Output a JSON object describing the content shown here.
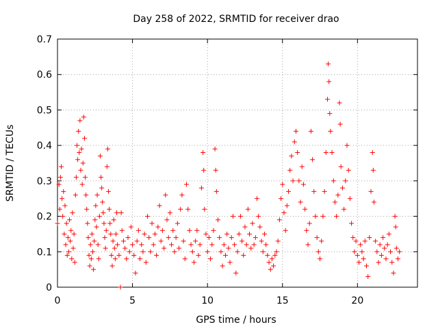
{
  "chart_data": {
    "type": "scatter",
    "title": "Day 258 of 2022, SRMTID for receiver drao",
    "xlabel": "GPS time / hours",
    "ylabel": "SRMTID / TECUs",
    "xlim": [
      0,
      24
    ],
    "ylim": [
      0,
      0.7
    ],
    "x_ticks": [
      "0",
      "5",
      "10",
      "15",
      "20"
    ],
    "y_ticks": [
      "0",
      "0.1",
      "0.2",
      "0.3",
      "0.4",
      "0.5",
      "0.6",
      "0.7"
    ],
    "grid": true,
    "marker": "+",
    "color": "#ff0000",
    "series": [
      {
        "name": "drao",
        "points": [
          [
            0.0,
            0.18
          ],
          [
            0.1,
            0.29
          ],
          [
            0.15,
            0.22
          ],
          [
            0.2,
            0.31
          ],
          [
            0.25,
            0.34
          ],
          [
            0.3,
            0.25
          ],
          [
            0.35,
            0.2
          ],
          [
            0.4,
            0.27
          ],
          [
            0.45,
            0.15
          ],
          [
            0.5,
            0.23
          ],
          [
            0.55,
            0.12
          ],
          [
            0.6,
            0.18
          ],
          [
            0.65,
            0.09
          ],
          [
            0.7,
            0.14
          ],
          [
            0.75,
            0.1
          ],
          [
            0.8,
            0.19
          ],
          [
            0.85,
            0.13
          ],
          [
            0.9,
            0.16
          ],
          [
            0.95,
            0.08
          ],
          [
            1.0,
            0.21
          ],
          [
            1.05,
            0.11
          ],
          [
            1.1,
            0.15
          ],
          [
            1.15,
            0.07
          ],
          [
            1.2,
            0.26
          ],
          [
            1.25,
            0.31
          ],
          [
            1.3,
            0.4
          ],
          [
            1.35,
            0.36
          ],
          [
            1.4,
            0.44
          ],
          [
            1.45,
            0.38
          ],
          [
            1.5,
            0.47
          ],
          [
            1.55,
            0.33
          ],
          [
            1.6,
            0.39
          ],
          [
            1.65,
            0.29
          ],
          [
            1.7,
            0.35
          ],
          [
            1.75,
            0.48
          ],
          [
            1.8,
            0.42
          ],
          [
            1.85,
            0.31
          ],
          [
            1.9,
            0.26
          ],
          [
            1.95,
            0.22
          ],
          [
            2.0,
            0.18
          ],
          [
            2.05,
            0.14
          ],
          [
            2.1,
            0.09
          ],
          [
            2.15,
            0.06
          ],
          [
            2.2,
            0.12
          ],
          [
            2.25,
            0.08
          ],
          [
            2.3,
            0.15
          ],
          [
            2.35,
            0.1
          ],
          [
            2.4,
            0.05
          ],
          [
            2.45,
            0.13
          ],
          [
            2.5,
            0.19
          ],
          [
            2.55,
            0.23
          ],
          [
            2.6,
            0.17
          ],
          [
            2.65,
            0.26
          ],
          [
            2.7,
            0.12
          ],
          [
            2.75,
            0.08
          ],
          [
            2.8,
            0.2
          ],
          [
            2.85,
            0.37
          ],
          [
            2.9,
            0.31
          ],
          [
            2.95,
            0.28
          ],
          [
            3.0,
            0.24
          ],
          [
            3.05,
            0.21
          ],
          [
            3.1,
            0.18
          ],
          [
            3.15,
            0.14
          ],
          [
            3.2,
            0.11
          ],
          [
            3.25,
            0.16
          ],
          [
            3.3,
            0.34
          ],
          [
            3.35,
            0.39
          ],
          [
            3.4,
            0.27
          ],
          [
            3.45,
            0.22
          ],
          [
            3.5,
            0.18
          ],
          [
            3.55,
            0.15
          ],
          [
            3.6,
            0.09
          ],
          [
            3.65,
            0.06
          ],
          [
            3.7,
            0.13
          ],
          [
            3.75,
            0.19
          ],
          [
            3.8,
            0.11
          ],
          [
            3.85,
            0.08
          ],
          [
            3.9,
            0.15
          ],
          [
            3.95,
            0.21
          ],
          [
            4.0,
            0.12
          ],
          [
            4.1,
            0.09
          ],
          [
            4.2,
            0.0
          ],
          [
            4.25,
            0.21
          ],
          [
            4.3,
            0.16
          ],
          [
            4.4,
            0.13
          ],
          [
            4.5,
            0.11
          ],
          [
            4.6,
            0.08
          ],
          [
            4.7,
            0.14
          ],
          [
            4.8,
            0.1
          ],
          [
            4.9,
            0.17
          ],
          [
            5.0,
            0.12
          ],
          [
            5.1,
            0.09
          ],
          [
            5.2,
            0.04
          ],
          [
            5.3,
            0.13
          ],
          [
            5.4,
            0.16
          ],
          [
            5.5,
            0.08
          ],
          [
            5.6,
            0.12
          ],
          [
            5.7,
            0.1
          ],
          [
            5.8,
            0.15
          ],
          [
            5.9,
            0.07
          ],
          [
            6.0,
            0.2
          ],
          [
            6.1,
            0.14
          ],
          [
            6.2,
            0.1
          ],
          [
            6.3,
            0.18
          ],
          [
            6.4,
            0.12
          ],
          [
            6.5,
            0.15
          ],
          [
            6.6,
            0.09
          ],
          [
            6.7,
            0.17
          ],
          [
            6.8,
            0.23
          ],
          [
            6.9,
            0.13
          ],
          [
            7.0,
            0.16
          ],
          [
            7.1,
            0.11
          ],
          [
            7.2,
            0.26
          ],
          [
            7.3,
            0.19
          ],
          [
            7.4,
            0.14
          ],
          [
            7.5,
            0.21
          ],
          [
            7.6,
            0.12
          ],
          [
            7.7,
            0.16
          ],
          [
            7.8,
            0.1
          ],
          [
            7.9,
            0.14
          ],
          [
            8.0,
            0.18
          ],
          [
            8.1,
            0.11
          ],
          [
            8.2,
            0.22
          ],
          [
            8.3,
            0.26
          ],
          [
            8.4,
            0.13
          ],
          [
            8.5,
            0.08
          ],
          [
            8.6,
            0.29
          ],
          [
            8.7,
            0.22
          ],
          [
            8.8,
            0.16
          ],
          [
            8.9,
            0.12
          ],
          [
            9.0,
            0.1
          ],
          [
            9.1,
            0.07
          ],
          [
            9.2,
            0.13
          ],
          [
            9.3,
            0.16
          ],
          [
            9.4,
            0.09
          ],
          [
            9.5,
            0.12
          ],
          [
            9.6,
            0.28
          ],
          [
            9.7,
            0.38
          ],
          [
            9.75,
            0.33
          ],
          [
            9.8,
            0.22
          ],
          [
            9.9,
            0.15
          ],
          [
            10.0,
            0.1
          ],
          [
            10.1,
            0.14
          ],
          [
            10.2,
            0.08
          ],
          [
            10.3,
            0.12
          ],
          [
            10.4,
            0.16
          ],
          [
            10.5,
            0.39
          ],
          [
            10.55,
            0.33
          ],
          [
            10.6,
            0.27
          ],
          [
            10.7,
            0.19
          ],
          [
            10.8,
            0.14
          ],
          [
            10.9,
            0.1
          ],
          [
            11.0,
            0.06
          ],
          [
            11.1,
            0.12
          ],
          [
            11.2,
            0.09
          ],
          [
            11.3,
            0.15
          ],
          [
            11.4,
            0.11
          ],
          [
            11.5,
            0.07
          ],
          [
            11.6,
            0.14
          ],
          [
            11.7,
            0.2
          ],
          [
            11.8,
            0.12
          ],
          [
            11.9,
            0.04
          ],
          [
            12.0,
            0.1
          ],
          [
            12.1,
            0.15
          ],
          [
            12.2,
            0.2
          ],
          [
            12.3,
            0.13
          ],
          [
            12.4,
            0.09
          ],
          [
            12.5,
            0.17
          ],
          [
            12.6,
            0.12
          ],
          [
            12.7,
            0.22
          ],
          [
            12.8,
            0.15
          ],
          [
            12.9,
            0.11
          ],
          [
            13.0,
            0.18
          ],
          [
            13.1,
            0.12
          ],
          [
            13.2,
            0.14
          ],
          [
            13.3,
            0.25
          ],
          [
            13.4,
            0.2
          ],
          [
            13.5,
            0.17
          ],
          [
            13.6,
            0.13
          ],
          [
            13.7,
            0.1
          ],
          [
            13.8,
            0.15
          ],
          [
            13.9,
            0.12
          ],
          [
            14.0,
            0.09
          ],
          [
            14.1,
            0.07
          ],
          [
            14.2,
            0.05
          ],
          [
            14.3,
            0.08
          ],
          [
            14.4,
            0.06
          ],
          [
            14.5,
            0.09
          ],
          [
            14.6,
            0.1
          ],
          [
            14.7,
            0.13
          ],
          [
            14.8,
            0.19
          ],
          [
            14.9,
            0.25
          ],
          [
            15.0,
            0.29
          ],
          [
            15.1,
            0.21
          ],
          [
            15.2,
            0.16
          ],
          [
            15.3,
            0.23
          ],
          [
            15.4,
            0.27
          ],
          [
            15.5,
            0.33
          ],
          [
            15.6,
            0.37
          ],
          [
            15.7,
            0.3
          ],
          [
            15.8,
            0.41
          ],
          [
            15.9,
            0.44
          ],
          [
            16.0,
            0.38
          ],
          [
            16.1,
            0.3
          ],
          [
            16.2,
            0.24
          ],
          [
            16.3,
            0.34
          ],
          [
            16.4,
            0.29
          ],
          [
            16.5,
            0.22
          ],
          [
            16.6,
            0.16
          ],
          [
            16.7,
            0.12
          ],
          [
            16.8,
            0.18
          ],
          [
            16.9,
            0.44
          ],
          [
            17.0,
            0.36
          ],
          [
            17.1,
            0.27
          ],
          [
            17.2,
            0.2
          ],
          [
            17.3,
            0.14
          ],
          [
            17.4,
            0.1
          ],
          [
            17.5,
            0.08
          ],
          [
            17.6,
            0.13
          ],
          [
            17.7,
            0.2
          ],
          [
            17.8,
            0.27
          ],
          [
            17.9,
            0.38
          ],
          [
            18.0,
            0.53
          ],
          [
            18.05,
            0.63
          ],
          [
            18.1,
            0.58
          ],
          [
            18.15,
            0.49
          ],
          [
            18.2,
            0.44
          ],
          [
            18.3,
            0.38
          ],
          [
            18.4,
            0.3
          ],
          [
            18.5,
            0.24
          ],
          [
            18.6,
            0.2
          ],
          [
            18.7,
            0.26
          ],
          [
            18.8,
            0.52
          ],
          [
            18.85,
            0.46
          ],
          [
            18.9,
            0.34
          ],
          [
            19.0,
            0.28
          ],
          [
            19.1,
            0.22
          ],
          [
            19.2,
            0.3
          ],
          [
            19.3,
            0.4
          ],
          [
            19.4,
            0.33
          ],
          [
            19.5,
            0.25
          ],
          [
            19.6,
            0.18
          ],
          [
            19.7,
            0.14
          ],
          [
            19.8,
            0.1
          ],
          [
            19.9,
            0.13
          ],
          [
            20.0,
            0.09
          ],
          [
            20.1,
            0.07
          ],
          [
            20.2,
            0.12
          ],
          [
            20.3,
            0.1
          ],
          [
            20.4,
            0.08
          ],
          [
            20.5,
            0.13
          ],
          [
            20.6,
            0.06
          ],
          [
            20.7,
            0.03
          ],
          [
            20.8,
            0.14
          ],
          [
            20.9,
            0.27
          ],
          [
            21.0,
            0.38
          ],
          [
            21.05,
            0.33
          ],
          [
            21.1,
            0.24
          ],
          [
            21.2,
            0.13
          ],
          [
            21.3,
            0.1
          ],
          [
            21.4,
            0.07
          ],
          [
            21.5,
            0.12
          ],
          [
            21.6,
            0.09
          ],
          [
            21.7,
            0.14
          ],
          [
            21.8,
            0.11
          ],
          [
            21.9,
            0.08
          ],
          [
            22.0,
            0.12
          ],
          [
            22.1,
            0.15
          ],
          [
            22.2,
            0.1
          ],
          [
            22.3,
            0.07
          ],
          [
            22.4,
            0.04
          ],
          [
            22.5,
            0.2
          ],
          [
            22.55,
            0.17
          ],
          [
            22.6,
            0.11
          ],
          [
            22.7,
            0.08
          ],
          [
            22.8,
            0.1
          ]
        ]
      }
    ]
  }
}
